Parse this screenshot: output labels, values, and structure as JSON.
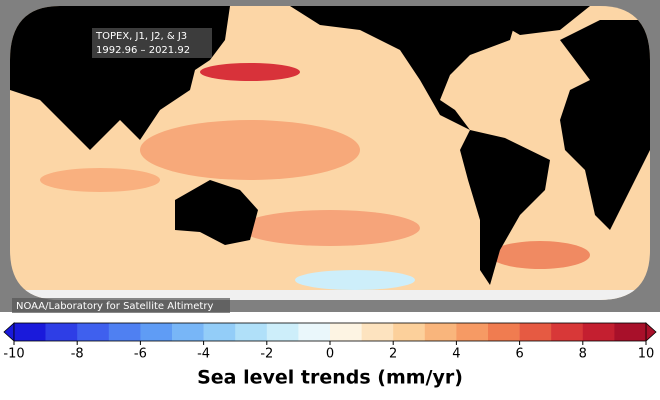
{
  "map": {
    "annotation_lines": [
      "TOPEX, J1, J2, & J3",
      "1992.96 – 2021.92"
    ],
    "credit": "NOAA/Laboratory for Satellite Altimetry"
  },
  "colorbar": {
    "label": "Sea level trends (mm/yr)",
    "lim": [
      -10,
      10
    ],
    "ticks": [
      -10,
      -8,
      -6,
      -4,
      -2,
      0,
      2,
      4,
      6,
      8,
      10
    ],
    "colors": [
      "#1a1adb",
      "#2e3ee6",
      "#3f60ee",
      "#4f80f2",
      "#5f9cf5",
      "#78b6f7",
      "#93cdf8",
      "#b0e0f9",
      "#cdeefa",
      "#eaf7fb",
      "#fdf4e3",
      "#fde3bf",
      "#fcd09b",
      "#f9b57c",
      "#f69a64",
      "#f07c50",
      "#e65a42",
      "#d83838",
      "#c41f30",
      "#a8102a"
    ],
    "under_color": "#1a1adb",
    "over_color": "#a8102a"
  }
}
